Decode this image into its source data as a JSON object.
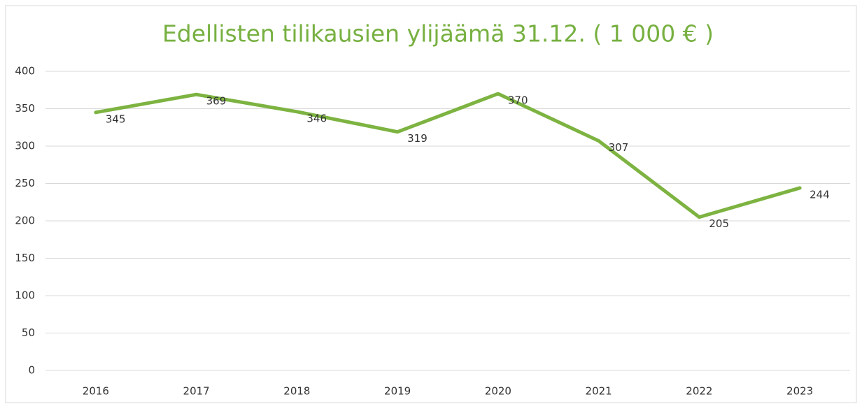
{
  "chart_data": {
    "type": "line",
    "title": "Edellisten tilikausien ylijäämä 31.12. ( 1 000 € )",
    "categories": [
      "2016",
      "2017",
      "2018",
      "2019",
      "2020",
      "2021",
      "2022",
      "2023"
    ],
    "values": [
      345,
      369,
      346,
      319,
      370,
      307,
      205,
      244
    ],
    "color": "#7db341",
    "ylim": [
      0,
      400
    ],
    "yticks": [
      0,
      50,
      100,
      150,
      200,
      250,
      300,
      350,
      400
    ],
    "grid": true
  }
}
